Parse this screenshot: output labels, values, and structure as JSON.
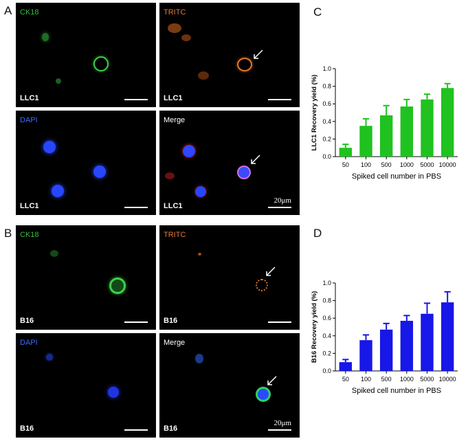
{
  "panels": {
    "A": "A",
    "B": "B",
    "C": "C",
    "D": "D"
  },
  "micrographs": {
    "llc1": {
      "ck18": "CK18",
      "tritc": "TRITC",
      "dapi": "DAPI",
      "merge": "Merge",
      "sample": "LLC1",
      "scale": "20μm"
    },
    "b16": {
      "ck18": "CK18",
      "tritc": "TRITC",
      "dapi": "DAPI",
      "merge": "Merge",
      "sample": "B16",
      "scale": "20μm"
    }
  },
  "colors": {
    "ck18_label": "#2fbf3a",
    "tritc_label": "#e07a3a",
    "dapi_label": "#3d6bff",
    "merge_label": "#ffffff",
    "llc1_bar": "#1fc21f",
    "b16_bar": "#1717e8"
  },
  "chart_data": [
    {
      "type": "bar",
      "panel": "C",
      "categories": [
        "50",
        "100",
        "500",
        "1000",
        "5000",
        "10000"
      ],
      "values": [
        0.1,
        0.35,
        0.47,
        0.57,
        0.65,
        0.78
      ],
      "errors": [
        0.04,
        0.08,
        0.11,
        0.08,
        0.06,
        0.05
      ],
      "xlabel": "Spiked cell number in PBS",
      "ylabel": "LLC1 Recovery yield (%)",
      "ylim": [
        0,
        1.0
      ],
      "yticks": [
        "0.0",
        "0.2",
        "0.4",
        "0.6",
        "0.8",
        "1.0"
      ]
    },
    {
      "type": "bar",
      "panel": "D",
      "categories": [
        "50",
        "100",
        "500",
        "1000",
        "5000",
        "10000"
      ],
      "values": [
        0.1,
        0.35,
        0.47,
        0.57,
        0.65,
        0.78
      ],
      "errors": [
        0.03,
        0.06,
        0.07,
        0.06,
        0.12,
        0.12
      ],
      "xlabel": "Spiked cell number in PBS",
      "ylabel": "B16 Recovery yield (%)",
      "ylim": [
        0,
        1.0
      ],
      "yticks": [
        "0.0",
        "0.2",
        "0.4",
        "0.6",
        "0.8",
        "1.0"
      ]
    }
  ]
}
